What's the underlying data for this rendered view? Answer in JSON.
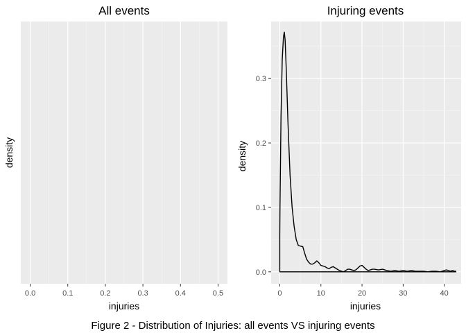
{
  "figure": {
    "caption": "Figure 2 - Distribution of Injuries: all events VS injuring events"
  },
  "chart_data": [
    {
      "type": "area",
      "title": "All events",
      "xlabel": "injuries",
      "ylabel": "density",
      "xlim": [
        -0.025,
        0.525
      ],
      "x_ticks": [
        0.0,
        0.1,
        0.2,
        0.3,
        0.4,
        0.5
      ],
      "x_tick_labels": [
        "0.0",
        "0.1",
        "0.2",
        "0.3",
        "0.4",
        "0.5"
      ],
      "y_ticks": [],
      "grid": true,
      "series": []
    },
    {
      "type": "line",
      "title": "Injuring events",
      "xlabel": "injuries",
      "ylabel": "density",
      "xlim": [
        -2.1,
        44.1
      ],
      "ylim": [
        -0.0185,
        0.3885
      ],
      "x_ticks": [
        0,
        10,
        20,
        30,
        40
      ],
      "x_tick_labels": [
        "0",
        "10",
        "20",
        "30",
        "40"
      ],
      "y_ticks": [
        0.0,
        0.1,
        0.2,
        0.3
      ],
      "y_tick_labels": [
        "0.0",
        "0.1",
        "0.2",
        "0.3"
      ],
      "grid": true,
      "series": [
        {
          "x": [
            0.0,
            0.05,
            0.3,
            0.6,
            0.9,
            1.1,
            1.3,
            1.6,
            2.0,
            2.5,
            3.0,
            3.5,
            4.0,
            4.5,
            5.0,
            5.6,
            6.0,
            6.5,
            7.0,
            7.5,
            8.0,
            8.5,
            9.0,
            9.5,
            10.0,
            10.5,
            11.0,
            11.5,
            12.0,
            12.5,
            13.0,
            13.5,
            14.0,
            14.5,
            15.0,
            15.5,
            16.0,
            16.5,
            17.0,
            17.5,
            18.0,
            18.5,
            19.0,
            19.5,
            20.0,
            20.5,
            21.0,
            21.5,
            22.0,
            22.5,
            23.0,
            24.0,
            25.0,
            26.0,
            27.0,
            28.0,
            29.0,
            30.0,
            31.0,
            32.0,
            33.0,
            34.0,
            35.0,
            36.0,
            37.0,
            38.0,
            39.0,
            40.0,
            40.5,
            41.0,
            41.5,
            42.0,
            42.5,
            42.8,
            42.8,
            0.0
          ],
          "y": [
            0.055,
            0.1,
            0.24,
            0.33,
            0.365,
            0.372,
            0.36,
            0.31,
            0.23,
            0.15,
            0.1,
            0.07,
            0.05,
            0.041,
            0.04,
            0.039,
            0.03,
            0.02,
            0.015,
            0.012,
            0.012,
            0.014,
            0.017,
            0.014,
            0.01,
            0.009,
            0.008,
            0.006,
            0.005,
            0.007,
            0.008,
            0.006,
            0.004,
            0.002,
            0.001,
            0.0,
            0.002,
            0.004,
            0.004,
            0.003,
            0.002,
            0.003,
            0.006,
            0.009,
            0.01,
            0.007,
            0.004,
            0.002,
            0.003,
            0.004,
            0.004,
            0.003,
            0.004,
            0.002,
            0.001,
            0.002,
            0.001,
            0.002,
            0.001,
            0.002,
            0.001,
            0.001,
            0.001,
            0.0,
            0.001,
            0.001,
            0.0,
            0.002,
            0.003,
            0.002,
            0.001,
            0.002,
            0.001,
            0.001,
            0.0,
            0.0
          ]
        }
      ]
    }
  ]
}
